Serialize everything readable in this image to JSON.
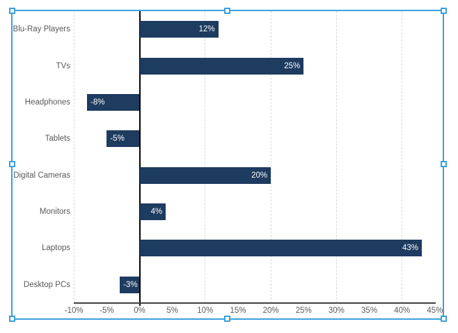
{
  "chart_data": {
    "type": "bar",
    "orientation": "horizontal",
    "title": "",
    "legend": "none",
    "categories": [
      "Blu-Ray Players",
      "TVs",
      "Headphones",
      "Tablets",
      "Digital Cameras",
      "Monitors",
      "Laptops",
      "Desktop PCs"
    ],
    "values": [
      12,
      25,
      -8,
      -5,
      20,
      4,
      43,
      -3
    ],
    "data_labels": [
      "12%",
      "25%",
      "-8%",
      "-5%",
      "20%",
      "4%",
      "43%",
      "-3%"
    ],
    "data_label_position": "inside-end",
    "x_axis": {
      "min": -10,
      "max": 45,
      "tick_interval": 5,
      "ticks": [
        {
          "value": -10,
          "label": "-10%"
        },
        {
          "value": -5,
          "label": "-5%"
        },
        {
          "value": 0,
          "label": "0%"
        },
        {
          "value": 5,
          "label": "5%"
        },
        {
          "value": 10,
          "label": "10%"
        },
        {
          "value": 15,
          "label": "15%"
        },
        {
          "value": 20,
          "label": "20%"
        },
        {
          "value": 25,
          "label": "25%"
        },
        {
          "value": 30,
          "label": "30%"
        },
        {
          "value": 35,
          "label": "35%"
        },
        {
          "value": 40,
          "label": "40%"
        },
        {
          "value": 45,
          "label": "45%"
        }
      ],
      "gridlines_at": [
        -10,
        10,
        20,
        30,
        40
      ]
    },
    "colors": {
      "bar": "#1e3b60",
      "data_label": "#ffffff",
      "axis_label": "#595959",
      "gridline": "#d9d9d9",
      "zero_line": "#000000",
      "axis_line": "#404040",
      "selection": "#3aa0dc",
      "background": "#ffffff"
    }
  },
  "selection": {
    "state": "chart-selected",
    "handle_count": 8
  }
}
